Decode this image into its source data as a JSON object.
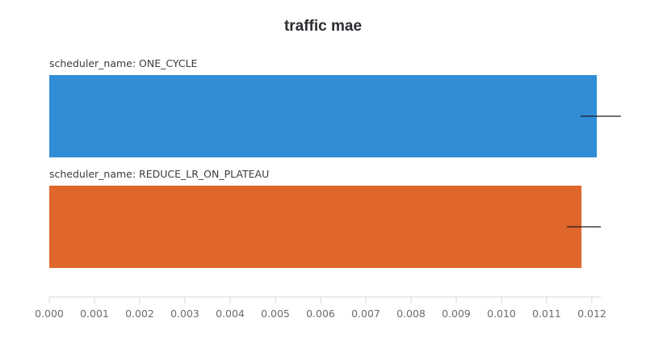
{
  "chart_data": {
    "type": "bar",
    "orientation": "horizontal",
    "title": "traffic mae",
    "xlabel": "",
    "ylabel": "",
    "categories": [
      "scheduler_name: ONE_CYCLE",
      "scheduler_name: REDUCE_LR_ON_PLATEAU"
    ],
    "values": [
      0.01211,
      0.01177
    ],
    "error_bars": [
      {
        "low": 0.01175,
        "high": 0.01264
      },
      {
        "low": 0.01145,
        "high": 0.0122
      }
    ],
    "colors": [
      "#318ed6",
      "#e0672b"
    ],
    "xlim": [
      0,
      0.0122
    ],
    "xticks": [
      "0.000",
      "0.001",
      "0.002",
      "0.003",
      "0.004",
      "0.005",
      "0.006",
      "0.007",
      "0.008",
      "0.009",
      "0.010",
      "0.011",
      "0.012"
    ],
    "grid": false,
    "legend": null
  }
}
